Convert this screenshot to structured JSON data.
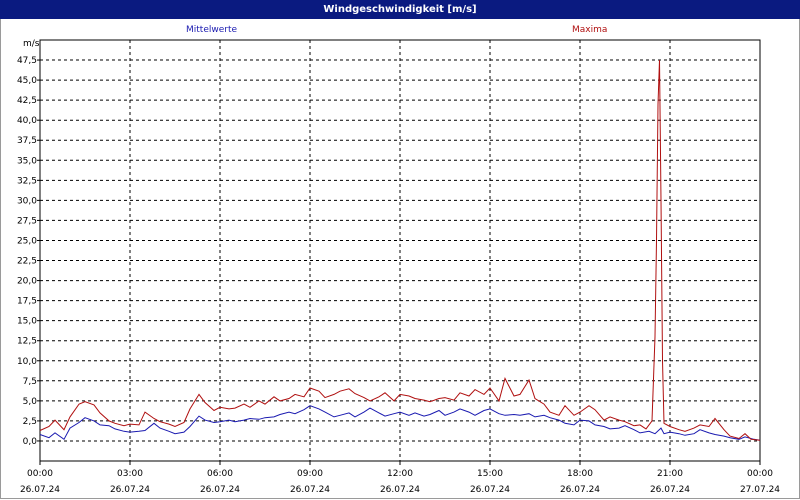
{
  "title": "Windgeschwindigkeit [m/s]",
  "chart_data": {
    "type": "line",
    "title": "Windgeschwindigkeit [m/s]",
    "ylabel": "m/s",
    "xlabel": "",
    "ylim": [
      -2.5,
      50
    ],
    "yticks": [
      "0,0",
      "2,5",
      "5,0",
      "7,5",
      "10,0",
      "12,5",
      "15,0",
      "17,5",
      "20,0",
      "22,5",
      "25,0",
      "27,5",
      "30,0",
      "32,5",
      "35,0",
      "37,5",
      "40,0",
      "42,5",
      "45,0",
      "47,5"
    ],
    "xlim_hours": [
      0,
      24
    ],
    "xticks": [
      {
        "time": "00:00",
        "date": "26.07.24"
      },
      {
        "time": "03:00",
        "date": "26.07.24"
      },
      {
        "time": "06:00",
        "date": "26.07.24"
      },
      {
        "time": "09:00",
        "date": "26.07.24"
      },
      {
        "time": "12:00",
        "date": "26.07.24"
      },
      {
        "time": "15:00",
        "date": "26.07.24"
      },
      {
        "time": "18:00",
        "date": "26.07.24"
      },
      {
        "time": "21:00",
        "date": "26.07.24"
      },
      {
        "time": "00:00",
        "date": "27.07.24"
      }
    ],
    "grid": true,
    "legend_placement": "top",
    "series": [
      {
        "name": "Mittelwerte",
        "color": "#1a1ab0",
        "points": [
          [
            0,
            0.8
          ],
          [
            0.3,
            0.4
          ],
          [
            0.5,
            1.0
          ],
          [
            0.8,
            0.2
          ],
          [
            1.0,
            1.6
          ],
          [
            1.3,
            2.3
          ],
          [
            1.5,
            2.9
          ],
          [
            1.8,
            2.5
          ],
          [
            2.0,
            2.0
          ],
          [
            2.3,
            1.9
          ],
          [
            2.5,
            1.5
          ],
          [
            2.8,
            1.2
          ],
          [
            3.0,
            1.1
          ],
          [
            3.3,
            1.2
          ],
          [
            3.5,
            1.3
          ],
          [
            3.8,
            2.2
          ],
          [
            4.0,
            1.6
          ],
          [
            4.3,
            1.2
          ],
          [
            4.5,
            0.9
          ],
          [
            4.8,
            1.1
          ],
          [
            5.0,
            1.8
          ],
          [
            5.3,
            3.1
          ],
          [
            5.5,
            2.6
          ],
          [
            5.8,
            2.3
          ],
          [
            6.0,
            2.4
          ],
          [
            6.3,
            2.6
          ],
          [
            6.5,
            2.4
          ],
          [
            6.8,
            2.6
          ],
          [
            7.0,
            2.8
          ],
          [
            7.3,
            2.7
          ],
          [
            7.5,
            2.9
          ],
          [
            7.8,
            3.0
          ],
          [
            8.0,
            3.3
          ],
          [
            8.3,
            3.6
          ],
          [
            8.5,
            3.4
          ],
          [
            8.8,
            3.9
          ],
          [
            9.0,
            4.4
          ],
          [
            9.3,
            4.0
          ],
          [
            9.5,
            3.6
          ],
          [
            9.8,
            3.0
          ],
          [
            10.0,
            3.2
          ],
          [
            10.3,
            3.5
          ],
          [
            10.5,
            3.0
          ],
          [
            10.8,
            3.6
          ],
          [
            11.0,
            4.1
          ],
          [
            11.3,
            3.5
          ],
          [
            11.5,
            3.1
          ],
          [
            11.8,
            3.4
          ],
          [
            12.0,
            3.6
          ],
          [
            12.3,
            3.2
          ],
          [
            12.5,
            3.5
          ],
          [
            12.8,
            3.1
          ],
          [
            13.0,
            3.3
          ],
          [
            13.3,
            3.8
          ],
          [
            13.5,
            3.2
          ],
          [
            13.8,
            3.6
          ],
          [
            14.0,
            4.0
          ],
          [
            14.3,
            3.6
          ],
          [
            14.5,
            3.2
          ],
          [
            14.8,
            3.8
          ],
          [
            15.0,
            4.0
          ],
          [
            15.3,
            3.4
          ],
          [
            15.5,
            3.2
          ],
          [
            15.8,
            3.3
          ],
          [
            16.0,
            3.2
          ],
          [
            16.3,
            3.4
          ],
          [
            16.5,
            3.0
          ],
          [
            16.8,
            3.2
          ],
          [
            17.0,
            2.9
          ],
          [
            17.3,
            2.6
          ],
          [
            17.5,
            2.2
          ],
          [
            17.8,
            2.0
          ],
          [
            18.0,
            2.6
          ],
          [
            18.3,
            2.5
          ],
          [
            18.5,
            2.0
          ],
          [
            18.8,
            1.8
          ],
          [
            19.0,
            1.5
          ],
          [
            19.3,
            1.6
          ],
          [
            19.5,
            1.9
          ],
          [
            19.8,
            1.4
          ],
          [
            20.0,
            1.0
          ],
          [
            20.3,
            1.2
          ],
          [
            20.5,
            0.9
          ],
          [
            20.7,
            1.6
          ],
          [
            20.8,
            0.9
          ],
          [
            21.0,
            1.1
          ],
          [
            21.3,
            0.9
          ],
          [
            21.5,
            0.7
          ],
          [
            21.8,
            0.9
          ],
          [
            22.0,
            1.4
          ],
          [
            22.3,
            1.0
          ],
          [
            22.5,
            0.8
          ],
          [
            22.8,
            0.6
          ],
          [
            23.0,
            0.4
          ],
          [
            23.3,
            0.2
          ],
          [
            23.5,
            0.5
          ],
          [
            23.8,
            0.2
          ],
          [
            24.0,
            0.1
          ]
        ]
      },
      {
        "name": "Maxima",
        "color": "#b01010",
        "points": [
          [
            0,
            1.3
          ],
          [
            0.3,
            1.8
          ],
          [
            0.5,
            2.6
          ],
          [
            0.8,
            1.4
          ],
          [
            1.0,
            3.0
          ],
          [
            1.3,
            4.6
          ],
          [
            1.5,
            4.9
          ],
          [
            1.8,
            4.5
          ],
          [
            2.0,
            3.5
          ],
          [
            2.3,
            2.5
          ],
          [
            2.5,
            2.2
          ],
          [
            2.8,
            1.9
          ],
          [
            3.0,
            2.1
          ],
          [
            3.3,
            2.0
          ],
          [
            3.5,
            3.6
          ],
          [
            3.8,
            2.8
          ],
          [
            4.0,
            2.4
          ],
          [
            4.3,
            2.1
          ],
          [
            4.5,
            1.8
          ],
          [
            4.8,
            2.3
          ],
          [
            5.0,
            4.0
          ],
          [
            5.3,
            5.8
          ],
          [
            5.5,
            4.8
          ],
          [
            5.8,
            3.8
          ],
          [
            6.0,
            4.2
          ],
          [
            6.3,
            4.0
          ],
          [
            6.5,
            4.1
          ],
          [
            6.8,
            4.6
          ],
          [
            7.0,
            4.2
          ],
          [
            7.3,
            5.0
          ],
          [
            7.5,
            4.6
          ],
          [
            7.8,
            5.5
          ],
          [
            8.0,
            5.0
          ],
          [
            8.3,
            5.3
          ],
          [
            8.5,
            5.8
          ],
          [
            8.8,
            5.5
          ],
          [
            9.0,
            6.6
          ],
          [
            9.3,
            6.2
          ],
          [
            9.5,
            5.4
          ],
          [
            9.8,
            5.8
          ],
          [
            10.0,
            6.2
          ],
          [
            10.3,
            6.5
          ],
          [
            10.5,
            5.9
          ],
          [
            10.8,
            5.4
          ],
          [
            11.0,
            5.0
          ],
          [
            11.3,
            5.5
          ],
          [
            11.5,
            6.0
          ],
          [
            11.8,
            5.0
          ],
          [
            12.0,
            5.8
          ],
          [
            12.3,
            5.6
          ],
          [
            12.5,
            5.3
          ],
          [
            12.8,
            5.1
          ],
          [
            13.0,
            4.9
          ],
          [
            13.3,
            5.3
          ],
          [
            13.5,
            5.4
          ],
          [
            13.8,
            5.1
          ],
          [
            14.0,
            6.0
          ],
          [
            14.3,
            5.6
          ],
          [
            14.5,
            6.4
          ],
          [
            14.8,
            5.8
          ],
          [
            15.0,
            6.6
          ],
          [
            15.3,
            5.0
          ],
          [
            15.5,
            7.8
          ],
          [
            15.8,
            5.6
          ],
          [
            16.0,
            5.8
          ],
          [
            16.3,
            7.6
          ],
          [
            16.5,
            5.3
          ],
          [
            16.8,
            4.6
          ],
          [
            17.0,
            3.6
          ],
          [
            17.3,
            3.2
          ],
          [
            17.5,
            4.4
          ],
          [
            17.8,
            3.2
          ],
          [
            18.0,
            3.6
          ],
          [
            18.3,
            4.4
          ],
          [
            18.5,
            3.9
          ],
          [
            18.8,
            2.6
          ],
          [
            19.0,
            3.0
          ],
          [
            19.3,
            2.6
          ],
          [
            19.5,
            2.4
          ],
          [
            19.8,
            1.9
          ],
          [
            20.0,
            2.0
          ],
          [
            20.2,
            1.5
          ],
          [
            20.4,
            2.5
          ],
          [
            20.5,
            13.0
          ],
          [
            20.55,
            25.0
          ],
          [
            20.6,
            42.0
          ],
          [
            20.65,
            47.5
          ],
          [
            20.7,
            30.0
          ],
          [
            20.75,
            10.0
          ],
          [
            20.8,
            2.2
          ],
          [
            21.0,
            1.8
          ],
          [
            21.3,
            1.4
          ],
          [
            21.5,
            1.2
          ],
          [
            21.8,
            1.6
          ],
          [
            22.0,
            2.0
          ],
          [
            22.3,
            1.8
          ],
          [
            22.5,
            2.8
          ],
          [
            22.8,
            1.4
          ],
          [
            23.0,
            0.6
          ],
          [
            23.3,
            0.3
          ],
          [
            23.5,
            0.9
          ],
          [
            23.7,
            0.2
          ],
          [
            24.0,
            0.1
          ]
        ]
      }
    ]
  }
}
